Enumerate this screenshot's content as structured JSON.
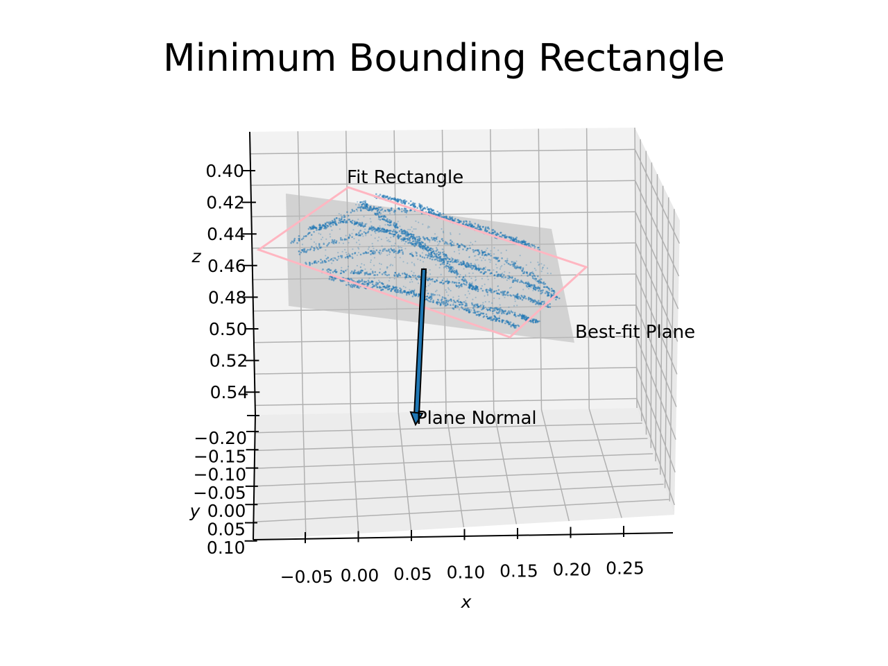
{
  "chart_data": {
    "type": "scatter",
    "projection": "3d",
    "title": "Minimum Bounding Rectangle",
    "xlabel": "x",
    "ylabel": "y",
    "zlabel": "z",
    "x_ticks": [
      "−0.05",
      "0.00",
      "0.05",
      "0.10",
      "0.15",
      "0.20",
      "0.25"
    ],
    "y_ticks": [
      "−0.20",
      "−0.15",
      "−0.10",
      "−0.05",
      "0.00",
      "0.05",
      "0.10"
    ],
    "z_ticks": [
      "0.40",
      "0.42",
      "0.44",
      "0.46",
      "0.48",
      "0.50",
      "0.52",
      "0.54"
    ],
    "grid": true,
    "z_inverted": true,
    "series": [
      {
        "kind": "point-cloud",
        "color": "#1f77b4"
      },
      {
        "kind": "plane",
        "name": "Best-fit Plane",
        "color": "#bdbdbd"
      },
      {
        "kind": "rectangle",
        "name": "Fit Rectangle",
        "color": "#ffb6c1"
      },
      {
        "kind": "arrow",
        "name": "Plane Normal",
        "color": "#1f77b4"
      }
    ],
    "annotations": [
      "Fit Rectangle",
      "Best-fit Plane",
      "Plane Normal"
    ]
  }
}
